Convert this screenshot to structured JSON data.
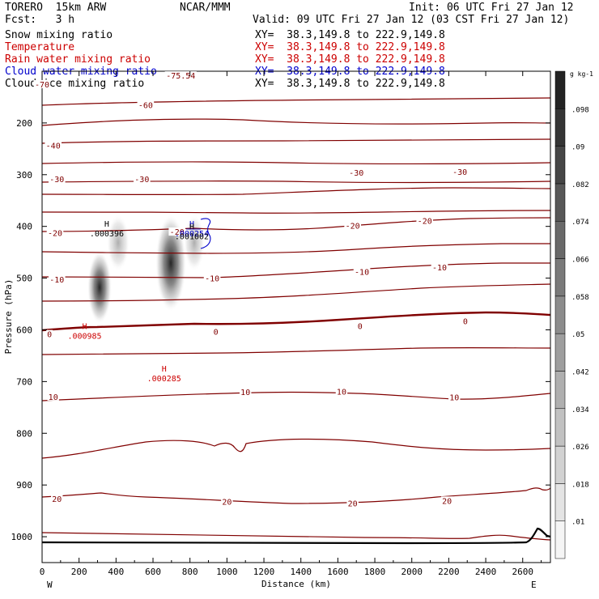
{
  "header": {
    "model": "TORERO  15km ARW",
    "center": "NCAR/MMM",
    "init": "Init: 06 UTC Fri 27 Jan 12",
    "fcst": "Fcst:   3 h",
    "valid": "Valid: 09 UTC Fri 27 Jan 12 (03 CST Fri 27 Jan 12)"
  },
  "fields": [
    {
      "label": "Snow mixing ratio",
      "xy": "XY=  38.3,149.8 to 222.9,149.8",
      "color": "#000000"
    },
    {
      "label": "Temperature",
      "xy": "XY=  38.3,149.8 to 222.9,149.8",
      "color": "#cc0000"
    },
    {
      "label": "Rain water mixing ratio",
      "xy": "XY=  38.3,149.8 to 222.9,149.8",
      "color": "#cc0000"
    },
    {
      "label": "Cloud water mixing ratio",
      "xy": "XY=  38.3,149.8 to 222.9,149.8",
      "color": "#0000cc"
    },
    {
      "label": "Cloud ice mixing ratio",
      "xy": "XY=  38.3,149.8 to 222.9,149.8",
      "color": "#000000"
    }
  ],
  "chart_data": {
    "type": "contour",
    "xlabel": "Distance (km)",
    "ylabel": "Pressure (hPa)",
    "xlim": [
      0,
      2750
    ],
    "ylim": [
      1050,
      100
    ],
    "x_ticks": [
      0,
      200,
      400,
      600,
      800,
      1000,
      1200,
      1400,
      1600,
      1800,
      2000,
      2200,
      2400,
      2600
    ],
    "y_ticks": [
      200,
      300,
      400,
      500,
      600,
      700,
      800,
      900,
      1000
    ],
    "endpoint_labels": {
      "left": "W",
      "right": "E"
    },
    "colorbar": {
      "unit": "g kg-1",
      "ticks": [
        ".01",
        ".018",
        ".026",
        ".034",
        ".042",
        ".05",
        ".058",
        ".066",
        ".074",
        ".082",
        ".09",
        ".098"
      ]
    },
    "isotherm_labels": [
      {
        "text": "-75.54",
        "x": 750,
        "p": 108
      },
      {
        "text": "-70",
        "x": 0,
        "p": 125
      },
      {
        "text": "-60",
        "x": 560,
        "p": 165
      },
      {
        "text": "-40",
        "x": 60,
        "p": 243
      },
      {
        "text": "-30",
        "x": 80,
        "p": 308
      },
      {
        "text": "-30",
        "x": 540,
        "p": 308
      },
      {
        "text": "-30",
        "x": 1700,
        "p": 296
      },
      {
        "text": "-30",
        "x": 2260,
        "p": 294
      },
      {
        "text": "-20",
        "x": 70,
        "p": 412
      },
      {
        "text": "-20",
        "x": 730,
        "p": 410
      },
      {
        "text": "-20",
        "x": 1680,
        "p": 398
      },
      {
        "text": "-20",
        "x": 2070,
        "p": 389
      },
      {
        "text": "-10",
        "x": 80,
        "p": 502
      },
      {
        "text": "-10",
        "x": 920,
        "p": 500
      },
      {
        "text": "-10",
        "x": 1730,
        "p": 487
      },
      {
        "text": "-10",
        "x": 2150,
        "p": 479
      },
      {
        "text": "0",
        "x": 40,
        "p": 608
      },
      {
        "text": "0",
        "x": 940,
        "p": 603
      },
      {
        "text": "0",
        "x": 1720,
        "p": 592
      },
      {
        "text": "0",
        "x": 2290,
        "p": 583
      },
      {
        "text": "10",
        "x": 60,
        "p": 729
      },
      {
        "text": "10",
        "x": 1100,
        "p": 720
      },
      {
        "text": "10",
        "x": 1620,
        "p": 719
      },
      {
        "text": "10",
        "x": 2230,
        "p": 730
      },
      {
        "text": "20",
        "x": 80,
        "p": 926
      },
      {
        "text": "20",
        "x": 1000,
        "p": 932
      },
      {
        "text": "20",
        "x": 1680,
        "p": 935
      },
      {
        "text": "20",
        "x": 2190,
        "p": 930
      }
    ],
    "extrema": [
      {
        "field": "Snow mixing ratio",
        "marker": "H",
        "value": ".000396",
        "x": 350,
        "p": 410
      },
      {
        "field": "Cloud water mixing ratio",
        "marker": "H",
        "value": ".000254",
        "x": 810,
        "p": 410
      },
      {
        "field": "Cloud ice mixing ratio",
        "marker": "H",
        "value": ".001002",
        "x": 810,
        "p": 415
      },
      {
        "field": "Rain water mixing ratio",
        "marker": "H",
        "value": ".000985",
        "x": 230,
        "p": 608
      },
      {
        "field": "Rain water mixing ratio",
        "marker": "H",
        "value": ".000285",
        "x": 660,
        "p": 690
      }
    ]
  }
}
